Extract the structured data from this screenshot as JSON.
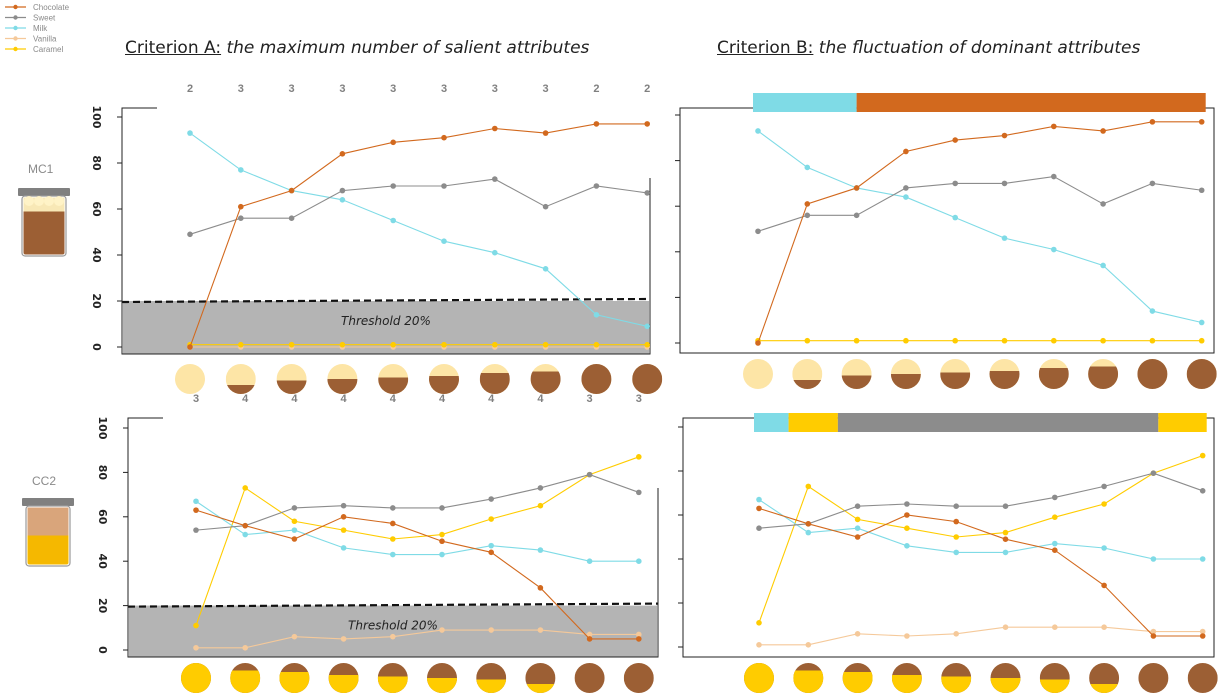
{
  "titles": {
    "a_prefix": "Criterion A:",
    "a_text": "the maximum number of salient attributes",
    "b_prefix": "Criterion B:",
    "b_text": "the fluctuation of dominant attributes"
  },
  "threshold_label": "Threshold 20%",
  "colors": {
    "Chocolate": "#d2691e",
    "Sweet": "#8c8c8c",
    "Milk": "#7fdbe6",
    "Vanilla": "#f5c99a",
    "Caramel": "#ffcc00",
    "chocolate_fill": "#9c5f34",
    "cream_fill": "#fde5a6"
  },
  "chart_data": [
    {
      "type": "line",
      "panel": "MC1 - Criterion A",
      "sample": "MC1",
      "x": [
        1,
        2,
        3,
        4,
        5,
        6,
        7,
        8,
        9,
        10
      ],
      "ylim": [
        0,
        100
      ],
      "yticks": [
        "0",
        "20",
        "40",
        "60",
        "80",
        "100"
      ],
      "threshold": 20,
      "top_counts": [
        "2",
        "3",
        "3",
        "3",
        "3",
        "3",
        "3",
        "3",
        "2",
        "2"
      ],
      "series": [
        {
          "name": "Chocolate",
          "values": [
            0,
            61,
            68,
            84,
            89,
            91,
            95,
            93,
            97,
            97
          ]
        },
        {
          "name": "Sweet",
          "values": [
            49,
            56,
            56,
            68,
            70,
            70,
            73,
            61,
            70,
            67
          ]
        },
        {
          "name": "Milk",
          "values": [
            93,
            77,
            68,
            64,
            55,
            46,
            41,
            34,
            14,
            9
          ]
        },
        {
          "name": "Vanilla",
          "values": [
            0,
            0,
            0,
            0,
            0,
            0,
            0,
            0,
            0,
            0
          ]
        },
        {
          "name": "Caramel",
          "values": [
            1,
            1,
            1,
            1,
            1,
            1,
            1,
            1,
            1,
            1
          ]
        }
      ]
    },
    {
      "type": "line",
      "panel": "MC1 - Criterion B",
      "sample": "MC1",
      "x": [
        1,
        2,
        3,
        4,
        5,
        6,
        7,
        8,
        9,
        10
      ],
      "ylim": [
        0,
        100
      ],
      "dominance_bar": [
        {
          "attribute": "Milk",
          "from": 1,
          "to": 3
        },
        {
          "attribute": "Chocolate",
          "from": 3,
          "to": 10
        }
      ],
      "series": [
        {
          "name": "Chocolate",
          "values": [
            0,
            61,
            68,
            84,
            89,
            91,
            95,
            93,
            97,
            97
          ]
        },
        {
          "name": "Sweet",
          "values": [
            49,
            56,
            56,
            68,
            70,
            70,
            73,
            61,
            70,
            67
          ]
        },
        {
          "name": "Milk",
          "values": [
            93,
            77,
            68,
            64,
            55,
            46,
            41,
            34,
            14,
            9
          ]
        },
        {
          "name": "Caramel",
          "values": [
            1,
            1,
            1,
            1,
            1,
            1,
            1,
            1,
            1,
            1
          ]
        }
      ]
    },
    {
      "type": "line",
      "panel": "CC2 - Criterion A",
      "sample": "CC2",
      "x": [
        1,
        2,
        3,
        4,
        5,
        6,
        7,
        8,
        9,
        10
      ],
      "ylim": [
        0,
        100
      ],
      "yticks": [
        "0",
        "20",
        "40",
        "60",
        "80",
        "100"
      ],
      "threshold": 20,
      "top_counts": [
        "3",
        "4",
        "4",
        "4",
        "4",
        "4",
        "4",
        "4",
        "3",
        "3"
      ],
      "series": [
        {
          "name": "Chocolate",
          "values": [
            63,
            56,
            50,
            60,
            57,
            49,
            44,
            28,
            5,
            5
          ]
        },
        {
          "name": "Sweet",
          "values": [
            54,
            56,
            64,
            65,
            64,
            64,
            68,
            73,
            79,
            71
          ]
        },
        {
          "name": "Milk",
          "values": [
            67,
            52,
            54,
            46,
            43,
            43,
            47,
            45,
            40,
            40
          ]
        },
        {
          "name": "Vanilla",
          "values": [
            1,
            1,
            6,
            5,
            6,
            9,
            9,
            9,
            7,
            7
          ]
        },
        {
          "name": "Caramel",
          "values": [
            11,
            73,
            58,
            54,
            50,
            52,
            59,
            65,
            79,
            87
          ]
        }
      ]
    },
    {
      "type": "line",
      "panel": "CC2 - Criterion B",
      "sample": "CC2",
      "x": [
        1,
        2,
        3,
        4,
        5,
        6,
        7,
        8,
        9,
        10
      ],
      "ylim": [
        0,
        100
      ],
      "dominance_bar": [
        {
          "attribute": "Milk",
          "from": 1,
          "to": 1.6
        },
        {
          "attribute": "Caramel",
          "from": 1.6,
          "to": 2.6
        },
        {
          "attribute": "Sweet",
          "from": 2.6,
          "to": 9.1
        },
        {
          "attribute": "Caramel",
          "from": 9.1,
          "to": 10
        }
      ],
      "series": [
        {
          "name": "Chocolate",
          "values": [
            63,
            56,
            50,
            60,
            57,
            49,
            44,
            28,
            5,
            5
          ]
        },
        {
          "name": "Sweet",
          "values": [
            54,
            56,
            64,
            65,
            64,
            64,
            68,
            73,
            79,
            71
          ]
        },
        {
          "name": "Milk",
          "values": [
            67,
            52,
            54,
            46,
            43,
            43,
            47,
            45,
            40,
            40
          ]
        },
        {
          "name": "Vanilla",
          "values": [
            1,
            1,
            6,
            5,
            6,
            9,
            9,
            9,
            7,
            7
          ]
        },
        {
          "name": "Caramel",
          "values": [
            11,
            73,
            58,
            54,
            50,
            52,
            59,
            65,
            79,
            87
          ]
        }
      ]
    }
  ],
  "legend": [
    "Chocolate",
    "Sweet",
    "Milk",
    "Vanilla",
    "Caramel"
  ],
  "samples": [
    "MC1",
    "CC2"
  ],
  "sample_fills": {
    "MC1": [
      0,
      0.3,
      0.45,
      0.5,
      0.55,
      0.6,
      0.7,
      0.75,
      1,
      1
    ],
    "CC2": [
      1,
      0.75,
      0.7,
      0.6,
      0.55,
      0.5,
      0.45,
      0.3,
      0,
      0
    ]
  }
}
